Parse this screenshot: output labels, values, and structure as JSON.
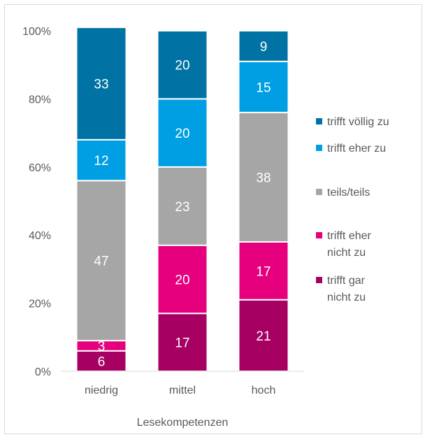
{
  "chart_data": {
    "type": "bar",
    "stacked": true,
    "categories": [
      "niedrig",
      "mittel",
      "hoch"
    ],
    "xlabel": "Lesekompetenzen",
    "ylabel": "",
    "ylim": [
      0,
      100
    ],
    "y_ticks": [
      0,
      20,
      40,
      60,
      80,
      100
    ],
    "y_tick_labels": [
      "0%",
      "20%",
      "40%",
      "60%",
      "80%",
      "100%"
    ],
    "grid": false,
    "legend_position": "right",
    "series": [
      {
        "name": "trifft gar nicht zu",
        "legend_lines": [
          "trifft gar",
          "nicht zu"
        ],
        "color": "#a50062",
        "values": [
          6,
          17,
          21
        ]
      },
      {
        "name": "trifft eher nicht zu",
        "legend_lines": [
          "trifft eher",
          "nicht zu"
        ],
        "color": "#e6007e",
        "values": [
          3,
          20,
          17
        ]
      },
      {
        "name": "teils/teils",
        "legend_lines": [
          "teils/teils"
        ],
        "color": "#a6a6a6",
        "values": [
          47,
          23,
          38
        ]
      },
      {
        "name": "trifft eher zu",
        "legend_lines": [
          "trifft eher zu"
        ],
        "color": "#009fe3",
        "values": [
          12,
          20,
          15
        ]
      },
      {
        "name": "trifft völlig zu",
        "legend_lines": [
          "trifft völlig zu"
        ],
        "color": "#0072a3",
        "values": [
          33,
          20,
          9
        ]
      }
    ]
  }
}
